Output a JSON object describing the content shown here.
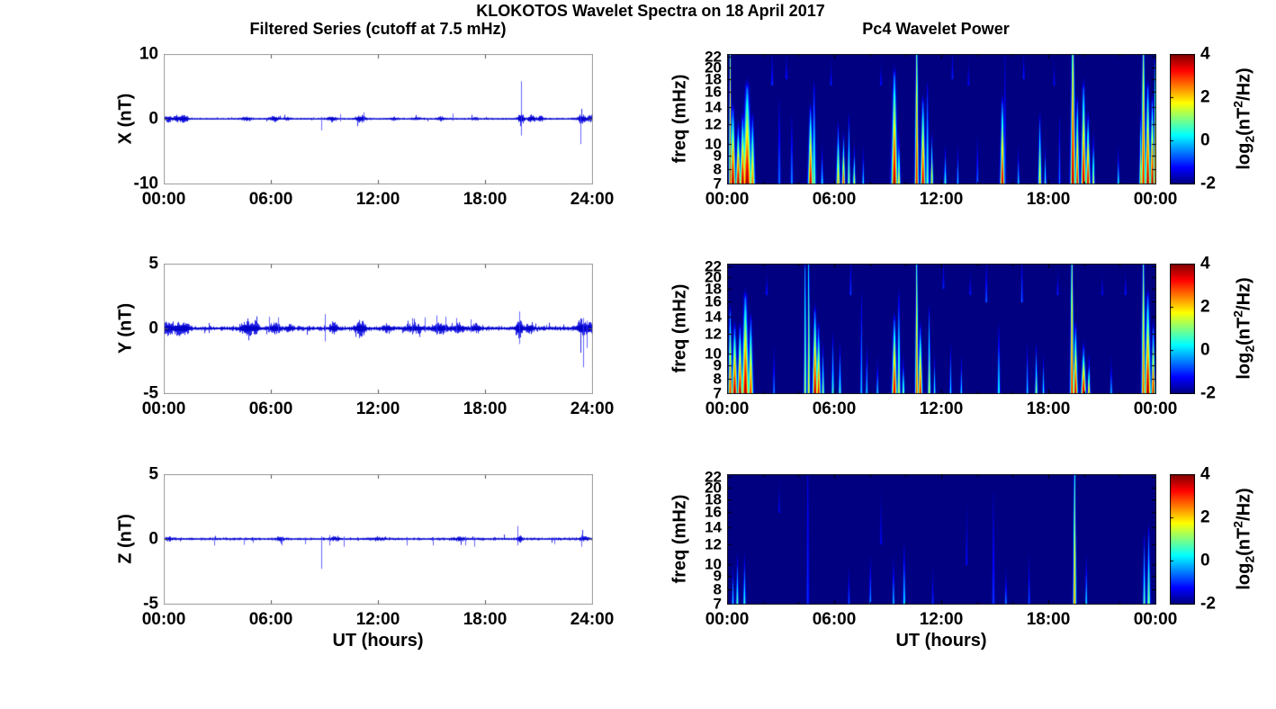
{
  "figure": {
    "title": "KLOKOTOS Wavelet Spectra on 18 April 2017",
    "left_title": "Filtered Series (cutoff at 7.5 mHz)",
    "right_title": "Pc4 Wavelet Power",
    "xlabel": "UT (hours)",
    "background": "#ffffff",
    "line_color": "#0000dd",
    "axis_box_color_timeseries": "#9a9a9a",
    "axis_box_color_spectrogram": "#1a1a1a"
  },
  "colorbar": {
    "ticks": [
      "4",
      "2",
      "0",
      "-2"
    ],
    "tick_values": [
      4,
      2,
      0,
      -2
    ],
    "clim": [
      -2,
      4
    ],
    "colormap": "jet",
    "label_parts": {
      "pre": "log",
      "sub": "2",
      "mid": "(nT",
      "sup": "2",
      "post": "/Hz)"
    }
  },
  "chart_data": [
    {
      "id": "ts_x",
      "type": "line",
      "component": "X",
      "ylabel": "X (nT)",
      "ylim": [
        -10,
        10
      ],
      "yticks": [
        10,
        0,
        -10
      ],
      "xlim_hours": [
        0,
        24
      ],
      "xtick_hours": [
        0,
        6,
        12,
        18,
        24
      ],
      "xtick_labels": [
        "00:00",
        "06:00",
        "12:00",
        "18:00",
        "24:00"
      ],
      "noise_amp_nT": 0.1,
      "bursts_t_amp_w": [
        [
          0.2,
          0.35,
          0.25
        ],
        [
          0.7,
          0.3,
          0.2
        ],
        [
          1.1,
          0.45,
          0.25
        ],
        [
          4.6,
          0.22,
          0.3
        ],
        [
          6.2,
          0.28,
          0.3
        ],
        [
          6.9,
          0.18,
          0.2
        ],
        [
          9.4,
          0.32,
          0.25
        ],
        [
          11.0,
          0.38,
          0.3
        ],
        [
          12.9,
          0.12,
          0.3
        ],
        [
          14.2,
          0.12,
          0.3
        ],
        [
          15.5,
          0.18,
          0.2
        ],
        [
          17.4,
          0.12,
          0.2
        ],
        [
          20.0,
          0.85,
          0.15
        ],
        [
          20.6,
          0.45,
          0.2
        ],
        [
          21.1,
          0.28,
          0.15
        ],
        [
          23.4,
          0.5,
          0.25
        ],
        [
          23.9,
          0.4,
          0.15
        ]
      ],
      "spikes_t_up_down": [
        [
          8.8,
          0.3,
          -1.8
        ],
        [
          9.9,
          0.7,
          -0.4
        ],
        [
          11.2,
          1.0,
          -0.5
        ],
        [
          16.2,
          0.8,
          -0.3
        ],
        [
          20.0,
          5.8,
          -2.6
        ],
        [
          23.35,
          0.4,
          -3.9
        ]
      ]
    },
    {
      "id": "wav_x",
      "type": "heatmap",
      "component": "X",
      "ylabel": "freq (mHz)",
      "flim_mHz": [
        7,
        22.5
      ],
      "yticks": [
        22,
        20,
        18,
        16,
        14,
        12,
        10,
        9,
        8,
        7
      ],
      "xlim_hours": [
        0,
        24
      ],
      "xtick_hours": [
        0,
        6,
        12,
        18,
        24
      ],
      "xtick_labels": [
        "00:00",
        "06:00",
        "12:00",
        "18:00",
        "00:00"
      ],
      "clim": [
        -2,
        4
      ],
      "events_t_ftop_peak_w_fbot": [
        [
          0.15,
          22,
          3.0,
          0.05
        ],
        [
          0.3,
          13,
          4,
          0.1
        ],
        [
          0.6,
          11,
          4,
          0.09
        ],
        [
          0.85,
          12,
          4,
          0.1
        ],
        [
          1.1,
          16,
          4,
          0.16
        ],
        [
          1.4,
          12,
          2.8,
          0.09
        ],
        [
          2.5,
          21,
          -0.8,
          0.04,
          17
        ],
        [
          2.9,
          14,
          -0.4,
          0.05
        ],
        [
          3.3,
          21,
          -1,
          0.04,
          18
        ],
        [
          3.6,
          12,
          -0.2,
          0.05
        ],
        [
          4.65,
          13,
          3.8,
          0.09
        ],
        [
          4.85,
          16,
          1.2,
          0.07
        ],
        [
          5.3,
          9,
          0.3,
          0.05
        ],
        [
          5.8,
          20,
          -1,
          0.04,
          17
        ],
        [
          6.2,
          11,
          2.4,
          0.07
        ],
        [
          6.5,
          10,
          3.2,
          0.06
        ],
        [
          6.8,
          12,
          1.4,
          0.05
        ],
        [
          7.1,
          9,
          1.8,
          0.05
        ],
        [
          7.6,
          9,
          0.3,
          0.04
        ],
        [
          8.6,
          20,
          -1,
          0.04,
          17
        ],
        [
          9.35,
          18,
          4,
          0.11
        ],
        [
          9.6,
          10,
          2,
          0.06
        ],
        [
          10.6,
          22,
          3.4,
          0.07
        ],
        [
          10.95,
          14,
          3.8,
          0.09
        ],
        [
          11.2,
          16,
          1.0,
          0.06
        ],
        [
          11.45,
          10,
          2.4,
          0.05
        ],
        [
          12.2,
          9,
          0.8,
          0.05
        ],
        [
          12.6,
          21,
          -1,
          0.04,
          18
        ],
        [
          12.9,
          9,
          0.2,
          0.04
        ],
        [
          13.5,
          20,
          -1.1,
          0.04,
          17
        ],
        [
          14.0,
          10,
          -0.4,
          0.04
        ],
        [
          15.4,
          14,
          3.8,
          0.08
        ],
        [
          15.55,
          22,
          -0.2,
          0.03
        ],
        [
          16.3,
          9,
          0.3,
          0.04
        ],
        [
          16.6,
          21,
          -1,
          0.04,
          18
        ],
        [
          17.5,
          12,
          2.2,
          0.06
        ],
        [
          17.8,
          9,
          0.8,
          0.04
        ],
        [
          18.3,
          20,
          -1.1,
          0.04,
          17
        ],
        [
          18.6,
          12,
          -0.4,
          0.04
        ],
        [
          19.35,
          22,
          4,
          0.09
        ],
        [
          19.6,
          14,
          3.4,
          0.07
        ],
        [
          19.95,
          16,
          4,
          0.09
        ],
        [
          20.2,
          12,
          3.8,
          0.08
        ],
        [
          20.5,
          10,
          1.8,
          0.05
        ],
        [
          21.9,
          9,
          0.6,
          0.04
        ],
        [
          23.15,
          12,
          2.5,
          0.05
        ],
        [
          23.3,
          22,
          3.5,
          0.08
        ],
        [
          23.55,
          16,
          4,
          0.09
        ],
        [
          23.8,
          14,
          4,
          0.08
        ],
        [
          23.95,
          20,
          2.5,
          0.04
        ]
      ]
    },
    {
      "id": "ts_y",
      "type": "line",
      "component": "Y",
      "ylabel": "Y (nT)",
      "ylim": [
        -5,
        5
      ],
      "yticks": [
        5,
        0,
        -5
      ],
      "xlim_hours": [
        0,
        24
      ],
      "xtick_hours": [
        0,
        6,
        12,
        18,
        24
      ],
      "xtick_labels": [
        "00:00",
        "06:00",
        "12:00",
        "18:00",
        "24:00"
      ],
      "noise_amp_nT": 0.12,
      "bursts_t_amp_w": [
        [
          0.2,
          0.4,
          0.25
        ],
        [
          0.8,
          0.35,
          0.3
        ],
        [
          1.2,
          0.3,
          0.2
        ],
        [
          4.6,
          0.45,
          0.3
        ],
        [
          5.1,
          0.3,
          0.2
        ],
        [
          6.2,
          0.25,
          0.3
        ],
        [
          7.0,
          0.18,
          0.2
        ],
        [
          9.5,
          0.3,
          0.2
        ],
        [
          11.0,
          0.42,
          0.3
        ],
        [
          12.5,
          0.18,
          0.3
        ],
        [
          14.0,
          0.22,
          0.5
        ],
        [
          15.5,
          0.28,
          0.4
        ],
        [
          16.5,
          0.25,
          0.3
        ],
        [
          17.5,
          0.22,
          0.3
        ],
        [
          19.9,
          0.55,
          0.2
        ],
        [
          20.5,
          0.3,
          0.2
        ],
        [
          23.4,
          0.5,
          0.25
        ],
        [
          23.8,
          0.45,
          0.15
        ]
      ],
      "spikes_t_up_down": [
        [
          5.9,
          0.9,
          -0.3
        ],
        [
          6.4,
          0.85,
          -0.3
        ],
        [
          9.0,
          1.1,
          -1.0
        ],
        [
          13.9,
          0.8,
          -0.3
        ],
        [
          14.6,
          0.85,
          -0.3
        ],
        [
          15.3,
          1.0,
          -0.4
        ],
        [
          15.8,
          0.9,
          -0.3
        ],
        [
          16.4,
          0.8,
          -0.3
        ],
        [
          17.2,
          0.7,
          -0.3
        ],
        [
          19.9,
          1.3,
          -1.2
        ],
        [
          23.5,
          0.8,
          -3.0
        ],
        [
          23.7,
          0.6,
          -1.5
        ]
      ]
    },
    {
      "id": "wav_y",
      "type": "heatmap",
      "component": "Y",
      "ylabel": "freq (mHz)",
      "flim_mHz": [
        7,
        22.5
      ],
      "yticks": [
        22,
        20,
        18,
        16,
        14,
        12,
        10,
        9,
        8,
        7
      ],
      "xlim_hours": [
        0,
        24
      ],
      "xtick_hours": [
        0,
        6,
        12,
        18,
        24
      ],
      "xtick_labels": [
        "00:00",
        "06:00",
        "12:00",
        "18:00",
        "00:00"
      ],
      "clim": [
        -2,
        4
      ],
      "events_t_ftop_peak_w_fbot": [
        [
          0.15,
          14,
          3.4,
          0.07
        ],
        [
          0.4,
          12,
          4,
          0.1
        ],
        [
          0.7,
          12,
          4,
          0.09
        ],
        [
          1.0,
          16,
          4,
          0.13
        ],
        [
          1.3,
          13,
          3.2,
          0.09
        ],
        [
          2.2,
          20,
          -1,
          0.04,
          17
        ],
        [
          2.6,
          10,
          -0.2,
          0.04
        ],
        [
          4.35,
          21,
          1.5,
          0.05
        ],
        [
          4.55,
          22,
          2.0,
          0.05
        ],
        [
          4.9,
          14,
          4,
          0.09
        ],
        [
          5.1,
          12,
          3.5,
          0.08
        ],
        [
          5.35,
          10,
          1.4,
          0.05
        ],
        [
          5.9,
          11,
          0.8,
          0.05
        ],
        [
          6.3,
          10,
          0.8,
          0.05
        ],
        [
          6.9,
          21,
          -0.8,
          0.04,
          17
        ],
        [
          7.5,
          16,
          0.2,
          0.04
        ],
        [
          7.8,
          10,
          0.3,
          0.04
        ],
        [
          8.4,
          9,
          0.3,
          0.04
        ],
        [
          9.35,
          13,
          3.8,
          0.09
        ],
        [
          9.6,
          16,
          1.6,
          0.06
        ],
        [
          9.85,
          9,
          1.2,
          0.05
        ],
        [
          10.6,
          22,
          3.0,
          0.06
        ],
        [
          10.8,
          12,
          3.5,
          0.08
        ],
        [
          11.3,
          14,
          1.8,
          0.05
        ],
        [
          11.6,
          9,
          0.8,
          0.04
        ],
        [
          12.1,
          21,
          -1,
          0.04,
          18
        ],
        [
          12.5,
          10,
          0.3,
          0.04
        ],
        [
          13.1,
          9,
          0.3,
          0.04
        ],
        [
          13.6,
          20,
          -1,
          0.04,
          17
        ],
        [
          14.5,
          21,
          -0.5,
          0.04,
          16
        ],
        [
          15.2,
          12,
          0.6,
          0.05
        ],
        [
          16.5,
          21,
          -0.5,
          0.04,
          16
        ],
        [
          16.8,
          10,
          0.3,
          0.04
        ],
        [
          17.3,
          10,
          1.4,
          0.05
        ],
        [
          17.7,
          9,
          0.6,
          0.04
        ],
        [
          18.5,
          20,
          -1,
          0.04,
          17
        ],
        [
          19.3,
          22,
          3.4,
          0.07
        ],
        [
          19.5,
          12,
          3.8,
          0.08
        ],
        [
          19.95,
          10,
          4,
          0.09
        ],
        [
          20.25,
          9,
          2.6,
          0.05
        ],
        [
          21.0,
          20,
          -1.2,
          0.04,
          17
        ],
        [
          21.5,
          9,
          0.2,
          0.04
        ],
        [
          22.3,
          20,
          -1,
          0.04,
          17
        ],
        [
          23.3,
          22,
          3.0,
          0.07
        ],
        [
          23.55,
          16,
          4,
          0.11
        ],
        [
          23.85,
          12,
          3.8,
          0.07
        ]
      ]
    },
    {
      "id": "ts_z",
      "type": "line",
      "component": "Z",
      "ylabel": "Z (nT)",
      "ylim": [
        -5,
        5
      ],
      "yticks": [
        5,
        0,
        -5
      ],
      "xlim_hours": [
        0,
        24
      ],
      "xtick_hours": [
        0,
        6,
        12,
        18,
        24
      ],
      "xtick_labels": [
        "00:00",
        "06:00",
        "12:00",
        "18:00",
        "24:00"
      ],
      "noise_amp_nT": 0.07,
      "bursts_t_amp_w": [
        [
          0.3,
          0.08,
          0.3
        ],
        [
          6.5,
          0.06,
          0.3
        ],
        [
          9.6,
          0.1,
          0.3
        ],
        [
          12.0,
          0.06,
          0.4
        ],
        [
          16.5,
          0.08,
          0.4
        ],
        [
          19.9,
          0.22,
          0.12
        ],
        [
          23.5,
          0.12,
          0.25
        ]
      ],
      "spikes_t_up_down": [
        [
          2.8,
          0.15,
          -0.5
        ],
        [
          4.5,
          0.1,
          -0.45
        ],
        [
          5.0,
          0.1,
          -0.3
        ],
        [
          6.6,
          0.15,
          -0.5
        ],
        [
          7.9,
          0.1,
          -0.4
        ],
        [
          8.8,
          0.2,
          -2.3
        ],
        [
          9.3,
          0.3,
          -0.5
        ],
        [
          10.1,
          0.2,
          -0.6
        ],
        [
          13.6,
          0.15,
          -0.5
        ],
        [
          15.1,
          0.15,
          -0.5
        ],
        [
          16.9,
          0.2,
          -0.5
        ],
        [
          17.4,
          0.15,
          -0.6
        ],
        [
          19.8,
          1.0,
          -0.5
        ],
        [
          21.9,
          0.1,
          -0.4
        ],
        [
          23.4,
          0.3,
          -0.6
        ]
      ]
    },
    {
      "id": "wav_z",
      "type": "heatmap",
      "component": "Z",
      "ylabel": "freq (mHz)",
      "flim_mHz": [
        7,
        22.5
      ],
      "yticks": [
        22,
        20,
        18,
        16,
        14,
        12,
        10,
        9,
        8,
        7
      ],
      "xlim_hours": [
        0,
        24
      ],
      "xtick_hours": [
        0,
        6,
        12,
        18,
        24
      ],
      "xtick_labels": [
        "00:00",
        "06:00",
        "12:00",
        "18:00",
        "00:00"
      ],
      "clim": [
        -2,
        4
      ],
      "events_t_ftop_peak_w_fbot": [
        [
          0.3,
          9,
          0.4,
          0.04
        ],
        [
          0.55,
          10,
          0.9,
          0.05
        ],
        [
          0.95,
          10,
          0.7,
          0.05
        ],
        [
          2.9,
          20,
          -1.3,
          0.04,
          16
        ],
        [
          4.5,
          22,
          -0.9,
          0.05
        ],
        [
          6.8,
          9,
          -0.6,
          0.04
        ],
        [
          8.0,
          10,
          -0.1,
          0.04
        ],
        [
          8.6,
          18,
          -1.2,
          0.04,
          12
        ],
        [
          9.3,
          10,
          0.2,
          0.04
        ],
        [
          9.9,
          11,
          0.4,
          0.05
        ],
        [
          11.5,
          9,
          -0.9,
          0.04
        ],
        [
          13.4,
          16,
          -1.2,
          0.04,
          10
        ],
        [
          14.9,
          18,
          -0.8,
          0.05
        ],
        [
          15.6,
          9,
          -0.2,
          0.04
        ],
        [
          16.9,
          10,
          -0.6,
          0.04
        ],
        [
          19.45,
          22,
          2.6,
          0.06
        ],
        [
          20.1,
          10,
          0.4,
          0.04
        ],
        [
          23.35,
          12,
          1.0,
          0.05
        ],
        [
          23.6,
          13,
          1.4,
          0.06
        ]
      ]
    }
  ]
}
